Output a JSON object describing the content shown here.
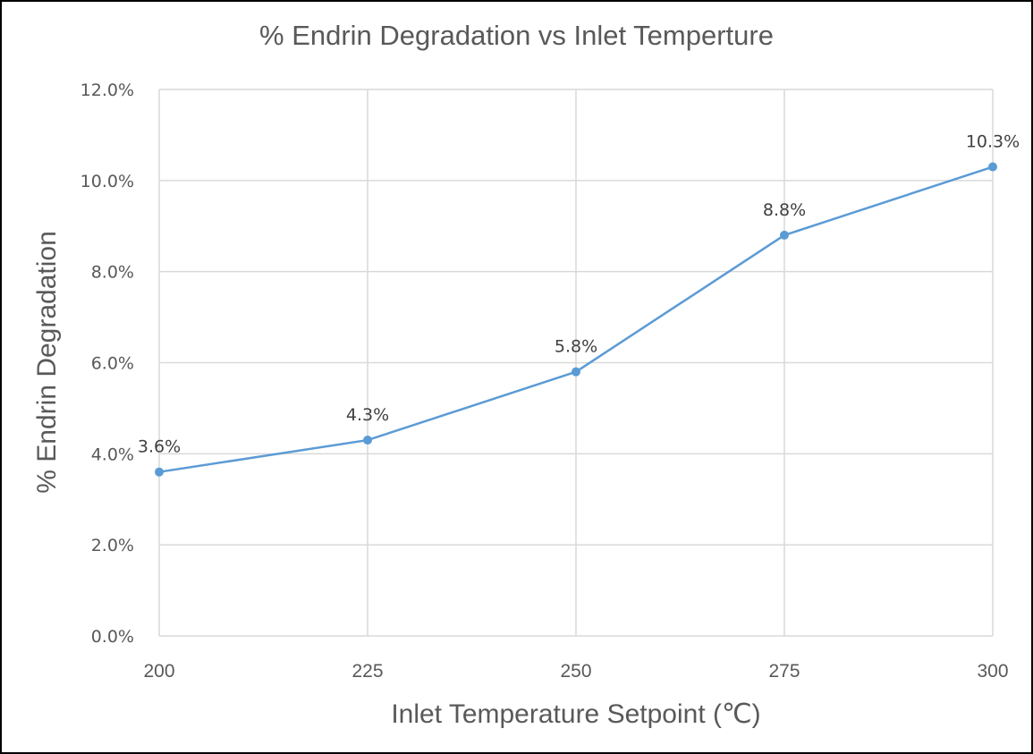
{
  "chart_data": {
    "type": "line",
    "title": "% Endrin Degradation vs Inlet Temperture",
    "xlabel": "Inlet Temperature Setpoint (℃)",
    "ylabel": "% Endrin Degradation",
    "x": [
      200,
      225,
      250,
      275,
      300
    ],
    "series": [
      {
        "name": "% Endrin Degradation",
        "values": [
          3.6,
          4.3,
          5.8,
          8.8,
          10.3
        ],
        "labels": [
          "3.6%",
          "4.3%",
          "5.8%",
          "8.8%",
          "10.3%"
        ],
        "color": "#5B9BD5"
      }
    ],
    "x_ticks": [
      "200",
      "225",
      "250",
      "275",
      "300"
    ],
    "y_ticks": [
      "0.0%",
      "2.0%",
      "4.0%",
      "6.0%",
      "8.0%",
      "10.0%",
      "12.0%"
    ],
    "xlim": [
      200,
      300
    ],
    "ylim": [
      0,
      12
    ],
    "grid": true,
    "legend": "none",
    "colors": {
      "line": "#5B9BD5",
      "grid": "#D9D9D9",
      "text": "#595959"
    }
  }
}
